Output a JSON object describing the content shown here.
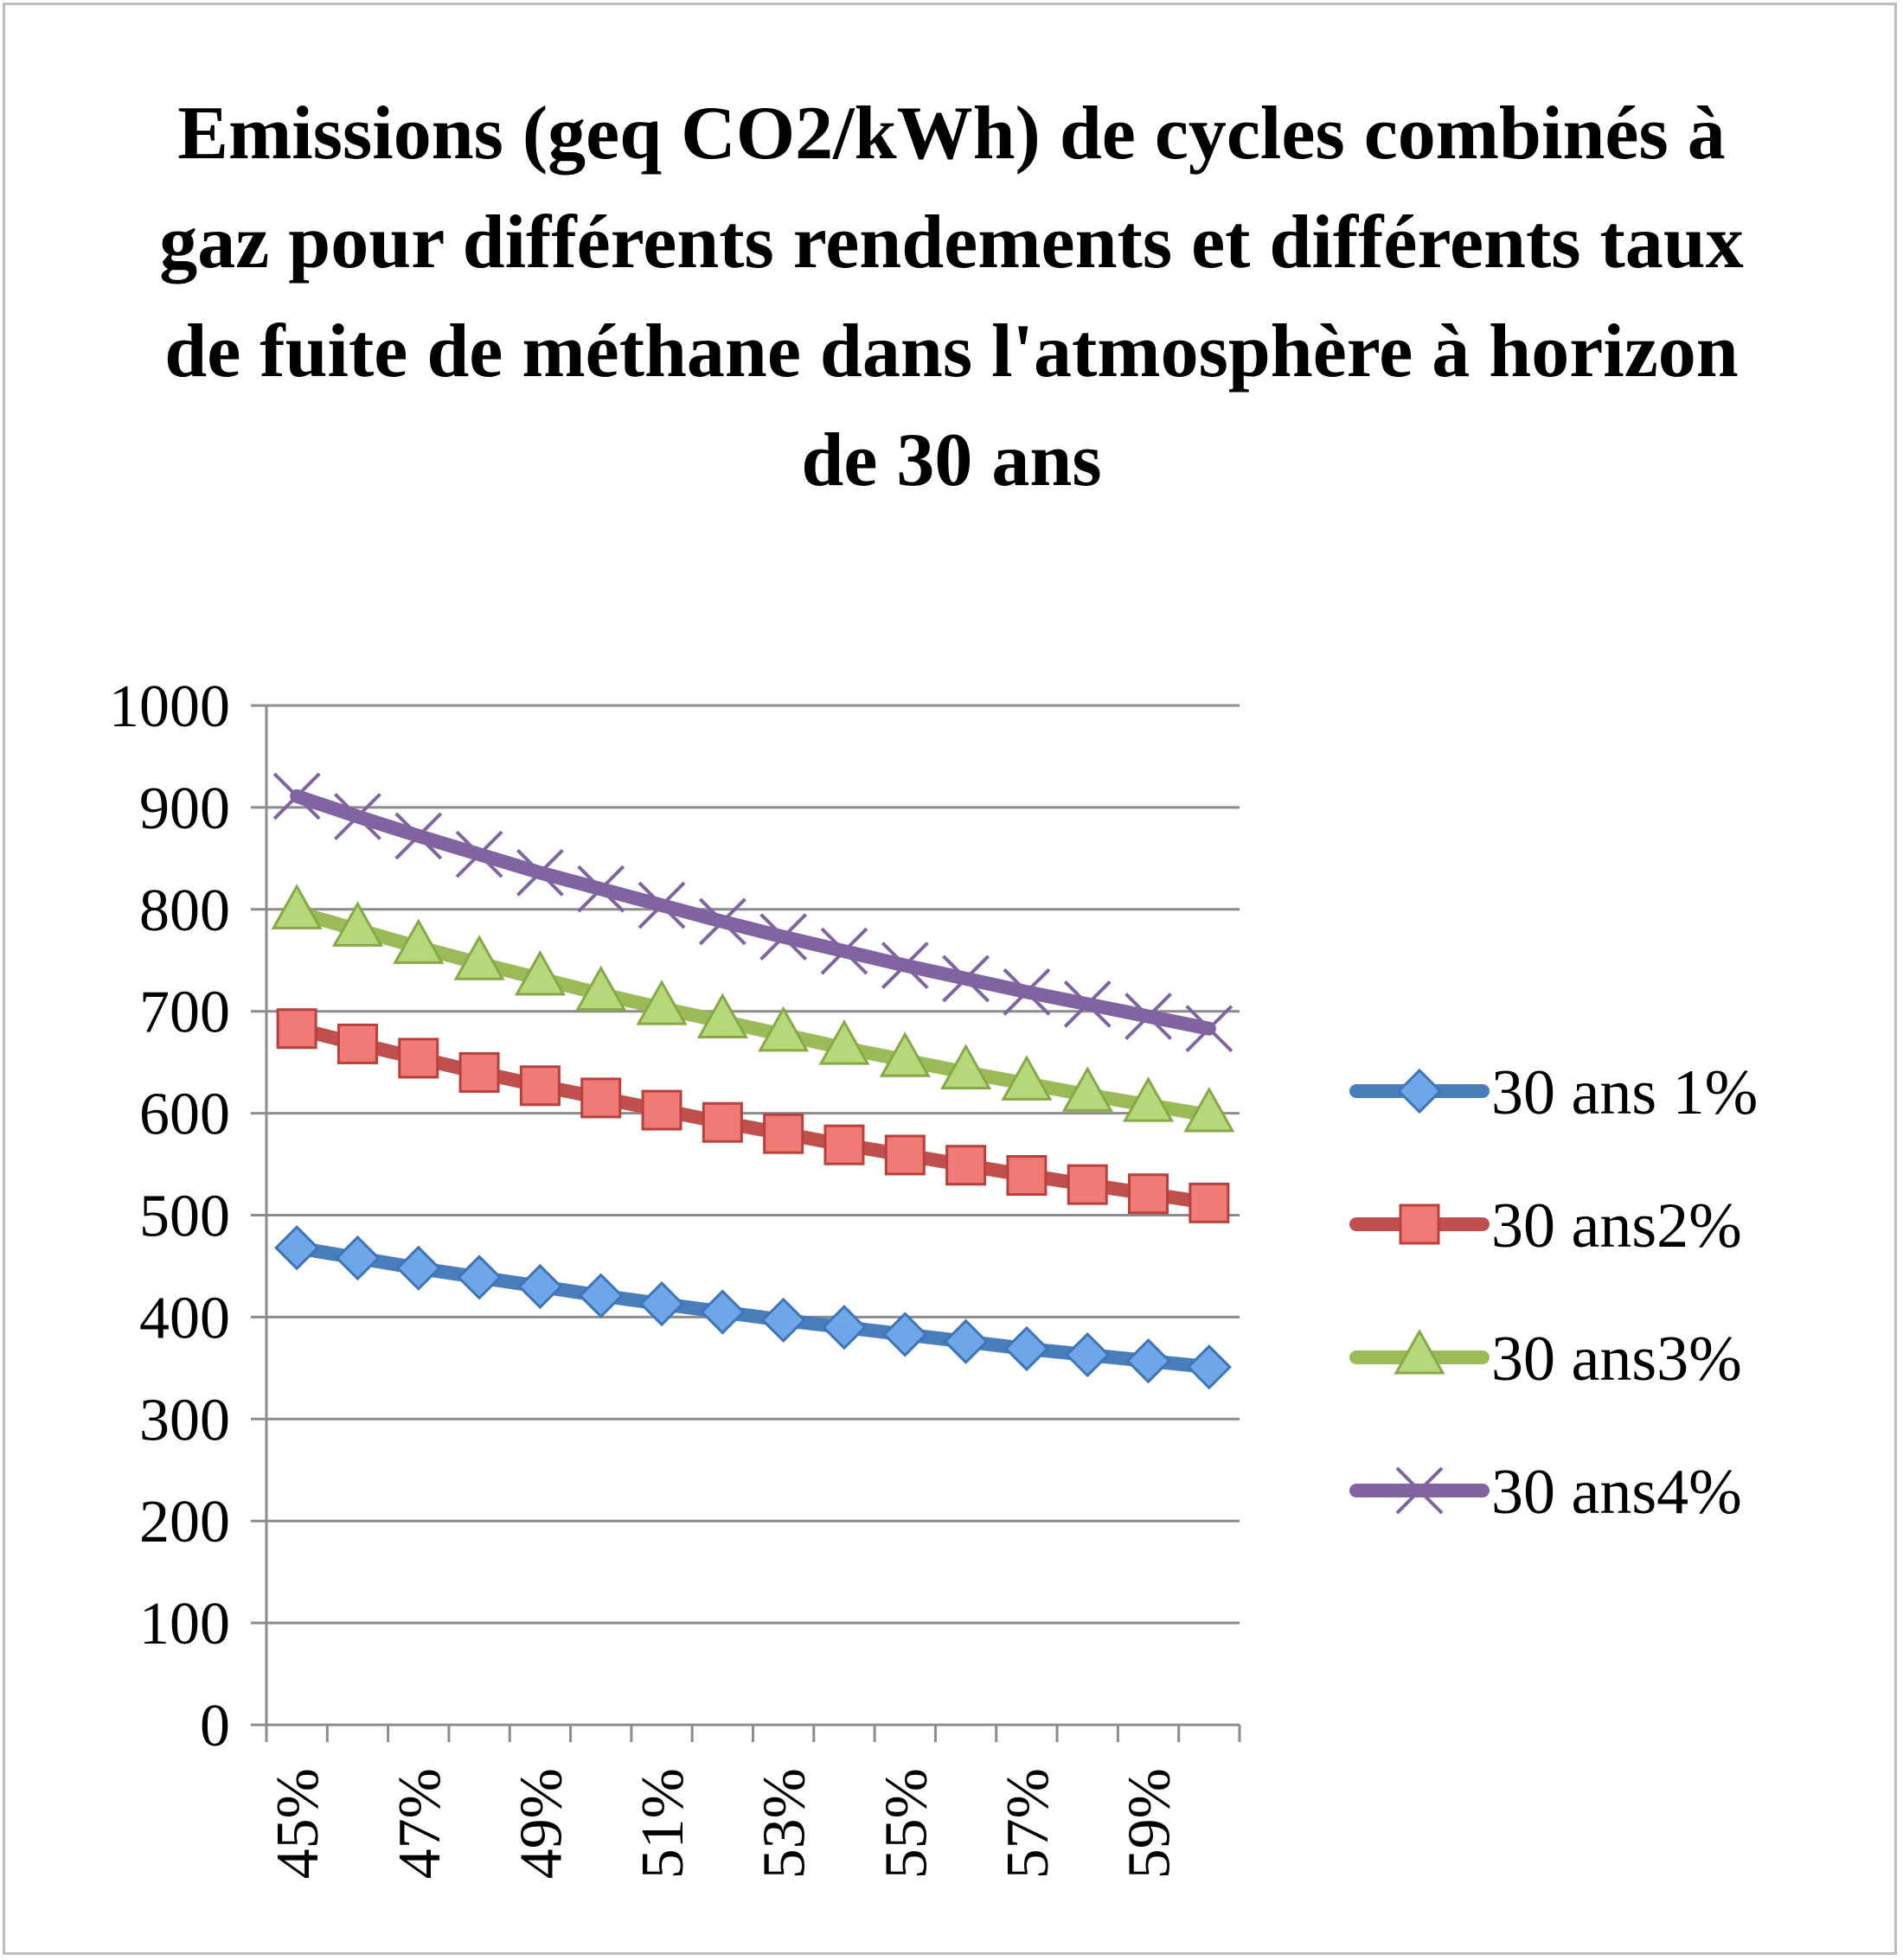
{
  "chart_data": {
    "type": "line",
    "title": "Emissions (geq CO2/kWh) de cycles combinés à gaz pour différents rendements et différents taux de fuite de méthane dans l'atmosphère à horizon de 30 ans",
    "xlabel": "",
    "ylabel": "",
    "ylim": [
      0,
      1000
    ],
    "yticks": [
      "0",
      "100",
      "200",
      "300",
      "400",
      "500",
      "600",
      "700",
      "800",
      "900",
      "1000"
    ],
    "x": [
      "45%",
      "46%",
      "47%",
      "48%",
      "49%",
      "50%",
      "51%",
      "52%",
      "53%",
      "54%",
      "55%",
      "56%",
      "57%",
      "58%",
      "59%",
      "60%"
    ],
    "xtick_labels": [
      "45%",
      "47%",
      "49%",
      "51%",
      "53%",
      "55%",
      "57%",
      "59%"
    ],
    "grid": true,
    "legend": "right",
    "series": [
      {
        "name": "30 ans 1%",
        "color": "#4A7EBB",
        "marker": "diamond",
        "values": [
          468,
          458,
          448,
          439,
          430,
          421,
          413,
          405,
          397,
          390,
          383,
          376,
          369,
          363,
          357,
          351
        ]
      },
      {
        "name": "30 ans2%",
        "color": "#C0504D",
        "marker": "square",
        "values": [
          683,
          668,
          654,
          640,
          627,
          615,
          603,
          591,
          580,
          569,
          559,
          549,
          539,
          530,
          521,
          512
        ]
      },
      {
        "name": "30 ans3%",
        "color": "#9BBB59",
        "marker": "triangle",
        "values": [
          797,
          780,
          763,
          747,
          732,
          717,
          703,
          690,
          677,
          664,
          652,
          640,
          629,
          618,
          608,
          598
        ]
      },
      {
        "name": "30 ans4%",
        "color": "#8064A2",
        "marker": "x",
        "values": [
          911,
          891,
          872,
          854,
          836,
          820,
          804,
          788,
          773,
          759,
          745,
          732,
          719,
          707,
          695,
          683
        ]
      }
    ]
  }
}
